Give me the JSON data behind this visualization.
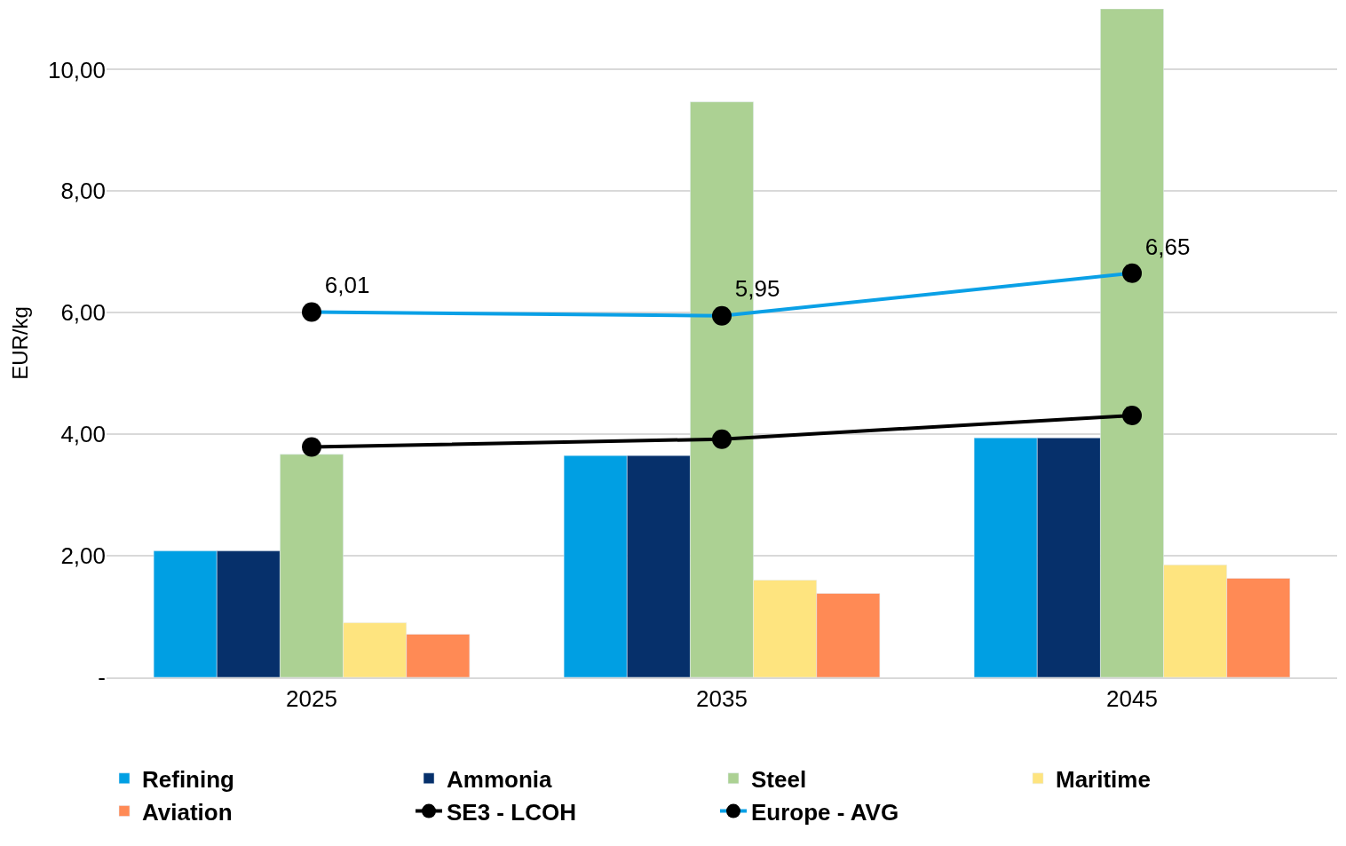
{
  "chart_data": {
    "type": "bar",
    "ylabel": "EUR/kg",
    "categories": [
      "2025",
      "2035",
      "2045"
    ],
    "series": [
      {
        "name": "Refining",
        "color": "#009fe3",
        "values": [
          2.08,
          3.65,
          3.94
        ]
      },
      {
        "name": "Ammonia",
        "color": "#06306b",
        "values": [
          2.08,
          3.65,
          3.94
        ]
      },
      {
        "name": "Steel",
        "color": "#acd193",
        "values": [
          3.67,
          9.47,
          11.0
        ]
      },
      {
        "name": "Maritime",
        "color": "#fee47f",
        "values": [
          0.9,
          1.6,
          1.85
        ]
      },
      {
        "name": "Aviation",
        "color": "#ff8a55",
        "values": [
          0.71,
          1.38,
          1.63
        ]
      },
      {
        "name": "SE3 - LCOH",
        "type": "line",
        "color": "#000000",
        "values": [
          3.79,
          3.92,
          4.31
        ]
      },
      {
        "name": "Europe - AVG",
        "type": "line",
        "color": "#0aa0e6",
        "values": [
          6.01,
          5.95,
          6.65
        ],
        "value_labels": [
          "6,01",
          "5,95",
          "6,65"
        ]
      }
    ],
    "ylim": [
      0,
      11
    ],
    "yticks": [
      {
        "value": 0,
        "label": "-"
      },
      {
        "value": 2,
        "label": "2,00"
      },
      {
        "value": 4,
        "label": "4,00"
      },
      {
        "value": 6,
        "label": "6,00"
      },
      {
        "value": 8,
        "label": "8,00"
      },
      {
        "value": 10,
        "label": "10,00"
      }
    ],
    "grid": "y",
    "legend": "bottom",
    "marker": "circle",
    "line_style": "solid"
  }
}
